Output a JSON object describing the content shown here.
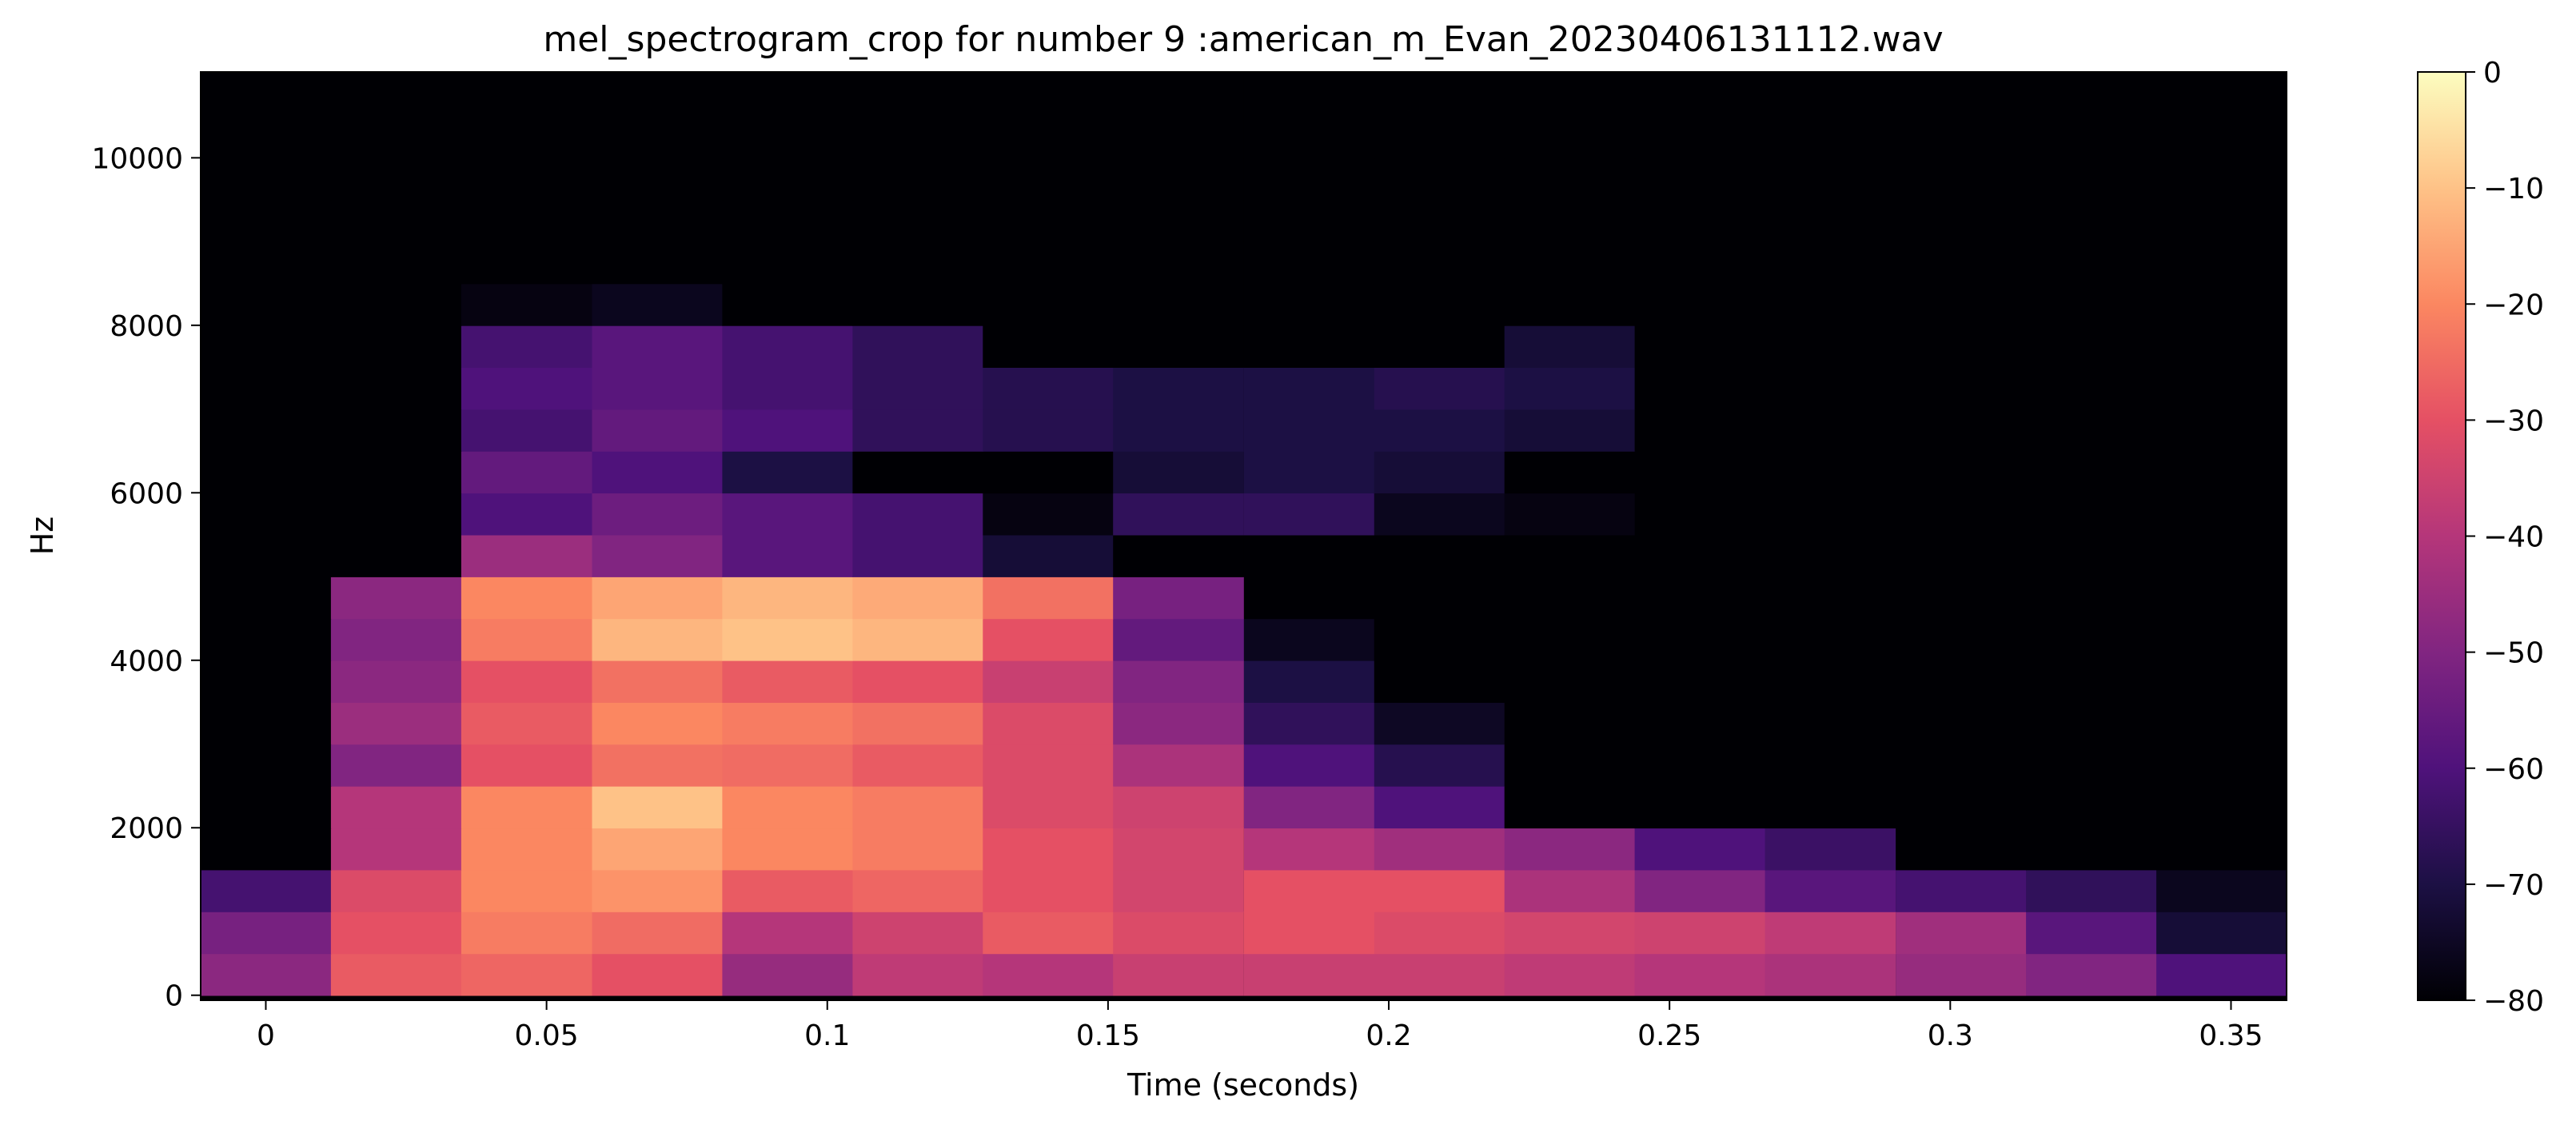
{
  "chart_data": {
    "type": "heatmap",
    "title": "mel_spectrogram_crop for number 9 :american_m_Evan_20230406131112.wav",
    "xlabel": "Time (seconds)",
    "ylabel": "Hz",
    "xlim": [
      -0.0116,
      0.3599
    ],
    "ylim": [
      -60,
      11025
    ],
    "x_ticks": [
      0,
      0.05,
      0.1,
      0.15,
      0.2,
      0.25,
      0.3,
      0.35
    ],
    "x_tick_labels": [
      "0",
      "0.05",
      "0.1",
      "0.15",
      "0.2",
      "0.25",
      "0.3",
      "0.35"
    ],
    "y_ticks": [
      0,
      2000,
      4000,
      6000,
      8000,
      10000
    ],
    "y_tick_labels": [
      "0",
      "2000",
      "4000",
      "6000",
      "8000",
      "10000"
    ],
    "colorbar": {
      "colormap": "magma",
      "range": [
        -80,
        0
      ],
      "ticks": [
        0,
        -10,
        -20,
        -30,
        -40,
        -50,
        -60,
        -70,
        -80
      ],
      "tick_labels": [
        "0",
        "−10",
        "−20",
        "−30",
        "−40",
        "−50",
        "−60",
        "−70",
        "−80"
      ]
    },
    "time_frames": [
      0,
      0.0232,
      0.0464,
      0.0697,
      0.0929,
      0.1161,
      0.1393,
      0.1625,
      0.1858,
      0.209,
      0.2322,
      0.2554,
      0.2786,
      0.3019,
      0.3251,
      0.3483
    ],
    "frequency_bands_hz": [
      0,
      500,
      1000,
      1500,
      2000,
      2500,
      3000,
      3500,
      4000,
      4500,
      5000,
      5500,
      6000,
      6500,
      7000,
      7500,
      8000,
      8500,
      9000,
      9500,
      10000,
      10500
    ],
    "values_db": [
      [
        -48,
        -28,
        -26,
        -30,
        -46,
        -38,
        -40,
        -36,
        -36,
        -36,
        -38,
        -40,
        -42,
        -46,
        -50,
        -60
      ],
      [
        -52,
        -30,
        -22,
        -25,
        -40,
        -35,
        -28,
        -32,
        -30,
        -32,
        -34,
        -35,
        -38,
        -44,
        -58,
        -72
      ],
      [
        -62,
        -32,
        -20,
        -18,
        -28,
        -26,
        -30,
        -34,
        -30,
        -30,
        -42,
        -50,
        -58,
        -62,
        -66,
        -76
      ],
      [
        -80,
        -40,
        -20,
        -15,
        -20,
        -22,
        -30,
        -34,
        -40,
        -44,
        -48,
        -60,
        -64,
        -80,
        -80,
        -80
      ],
      [
        -80,
        -40,
        -20,
        -10,
        -20,
        -22,
        -32,
        -35,
        -50,
        -60,
        -80,
        -80,
        -80,
        -80,
        -80,
        -80
      ],
      [
        -80,
        -50,
        -30,
        -24,
        -25,
        -28,
        -32,
        -42,
        -60,
        -68,
        -80,
        -80,
        -80,
        -80,
        -80,
        -80
      ],
      [
        -80,
        -45,
        -28,
        -20,
        -22,
        -24,
        -32,
        -48,
        -66,
        -75,
        -80,
        -80,
        -80,
        -80,
        -80,
        -80
      ],
      [
        -80,
        -48,
        -30,
        -24,
        -28,
        -30,
        -36,
        -50,
        -70,
        -80,
        -80,
        -80,
        -80,
        -80,
        -80,
        -80
      ],
      [
        -80,
        -50,
        -22,
        -12,
        -10,
        -12,
        -30,
        -56,
        -76,
        -80,
        -80,
        -80,
        -80,
        -80,
        -80,
        -80
      ],
      [
        -80,
        -48,
        -20,
        -15,
        -12,
        -14,
        -24,
        -52,
        -80,
        -80,
        -80,
        -80,
        -80,
        -80,
        -80,
        -80
      ],
      [
        -80,
        -80,
        -45,
        -50,
        -58,
        -62,
        -72,
        -80,
        -80,
        -80,
        -80,
        -80,
        -80,
        -80,
        -80,
        -80
      ],
      [
        -80,
        -80,
        -60,
        -54,
        -58,
        -62,
        -78,
        -66,
        -66,
        -76,
        -78,
        -80,
        -80,
        -80,
        -80,
        -80
      ],
      [
        -80,
        -80,
        -56,
        -60,
        -70,
        -80,
        -80,
        -72,
        -70,
        -72,
        -80,
        -80,
        -80,
        -80,
        -80,
        -80
      ],
      [
        -80,
        -80,
        -62,
        -56,
        -60,
        -66,
        -68,
        -70,
        -70,
        -70,
        -72,
        -80,
        -80,
        -80,
        -80,
        -80
      ],
      [
        -80,
        -80,
        -60,
        -58,
        -62,
        -66,
        -68,
        -70,
        -70,
        -68,
        -70,
        -80,
        -80,
        -80,
        -80,
        -80
      ],
      [
        -80,
        -80,
        -62,
        -58,
        -62,
        -66,
        -80,
        -80,
        -80,
        -80,
        -72,
        -80,
        -80,
        -80,
        -80,
        -80
      ],
      [
        -80,
        -80,
        -78,
        -76,
        -80,
        -80,
        -80,
        -80,
        -80,
        -80,
        -80,
        -80,
        -80,
        -80,
        -80,
        -80
      ],
      [
        -80,
        -80,
        -80,
        -80,
        -80,
        -80,
        -80,
        -80,
        -80,
        -80,
        -80,
        -80,
        -80,
        -80,
        -80,
        -80
      ],
      [
        -80,
        -80,
        -80,
        -80,
        -80,
        -80,
        -80,
        -80,
        -80,
        -80,
        -80,
        -80,
        -80,
        -80,
        -80,
        -80
      ],
      [
        -80,
        -80,
        -80,
        -80,
        -80,
        -80,
        -80,
        -80,
        -80,
        -80,
        -80,
        -80,
        -80,
        -80,
        -80,
        -80
      ],
      [
        -80,
        -80,
        -80,
        -80,
        -80,
        -80,
        -80,
        -80,
        -80,
        -80,
        -80,
        -80,
        -80,
        -80,
        -80,
        -80
      ],
      [
        -80,
        -80,
        -80,
        -80,
        -80,
        -80,
        -80,
        -80,
        -80,
        -80,
        -80,
        -80,
        -80,
        -80,
        -80,
        -80
      ]
    ]
  }
}
